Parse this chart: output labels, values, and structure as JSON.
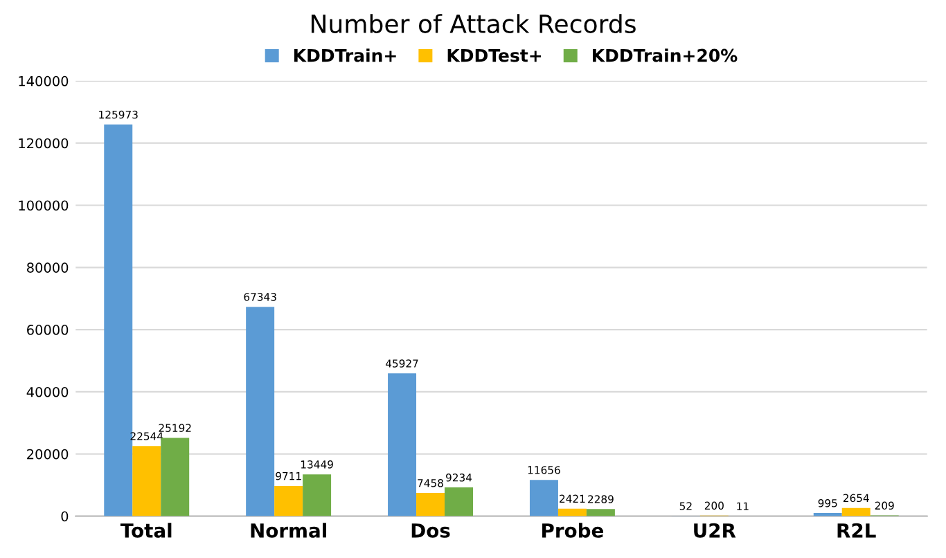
{
  "chart_data": {
    "type": "bar",
    "title": "Number of Attack Records",
    "categories": [
      "Total",
      "Normal",
      "Dos",
      "Probe",
      "U2R",
      "R2L"
    ],
    "series": [
      {
        "name": "KDDTrain+",
        "color": "#5b9bd5",
        "values": [
          125973,
          67343,
          45927,
          11656,
          52,
          995
        ]
      },
      {
        "name": "KDDTest+",
        "color": "#ffc000",
        "values": [
          22544,
          9711,
          7458,
          2421,
          200,
          2654
        ]
      },
      {
        "name": "KDDTrain+20%",
        "color": "#70ad47",
        "values": [
          25192,
          13449,
          9234,
          2289,
          11,
          209
        ]
      }
    ],
    "ylim": [
      0,
      140000
    ],
    "yticks": [
      0,
      20000,
      40000,
      60000,
      80000,
      100000,
      120000,
      140000
    ],
    "grid": "y",
    "legend": "top",
    "data_labels": true
  }
}
